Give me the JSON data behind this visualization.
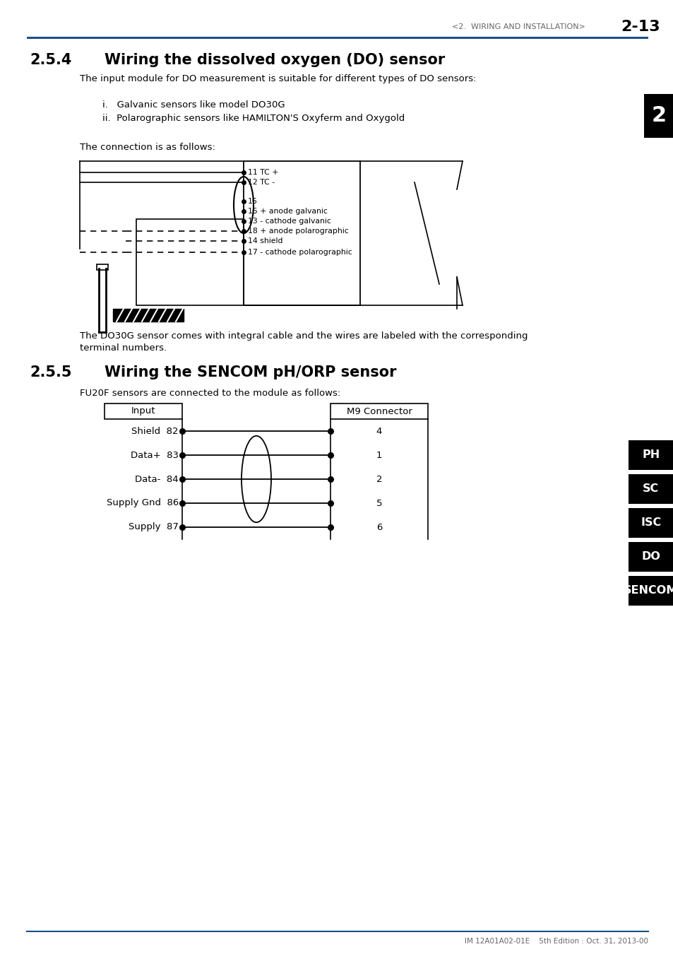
{
  "page_header": "<2.  WIRING AND INSTALLATION>",
  "page_number": "2-13",
  "section_254_num": "2.5.4",
  "section_254_title": "Wiring the dissolved oxygen (DO) sensor",
  "section_254_body": "The input module for DO measurement is suitable for different types of DO sensors:",
  "list_item_i": "i.   Galvanic sensors like model DO30G",
  "list_item_ii": "ii.  Polarographic sensors like HAMILTON'S Oxyferm and Oxygold",
  "connection_text": "The connection is as follows:",
  "do_note_1": "The DO30G sensor comes with integral cable and the wires are labeled with the corresponding",
  "do_note_2": "terminal numbers.",
  "section_255_num": "2.5.5",
  "section_255_title": "Wiring the SENCOM pH/ORP sensor",
  "section_255_body": "FU20F sensors are connected to the module as follows:",
  "input_label": "Input",
  "m9_label": "M9 Connector",
  "wiring_rows": [
    {
      "left_label": "Shield",
      "left_num": "82",
      "right_num": "4"
    },
    {
      "left_label": "Data+",
      "left_num": "83",
      "right_num": "1"
    },
    {
      "left_label": "Data-",
      "left_num": "84",
      "right_num": "2"
    },
    {
      "left_label": "Supply Gnd",
      "left_num": "86",
      "right_num": "5"
    },
    {
      "left_label": "Supply",
      "left_num": "87",
      "right_num": "6"
    }
  ],
  "side_tabs": [
    "PH",
    "SC",
    "ISC",
    "DO",
    "SENCOM"
  ],
  "footer_text": "IM 12A01A02-01E    5th Edition : Oct. 31, 2013-00",
  "chapter_tab": "2",
  "bg_color": "#ffffff",
  "text_color": "#000000",
  "blue_color": "#1a4f8a",
  "tab_bg": "#000000",
  "tab_fg": "#ffffff",
  "gray_color": "#666666"
}
